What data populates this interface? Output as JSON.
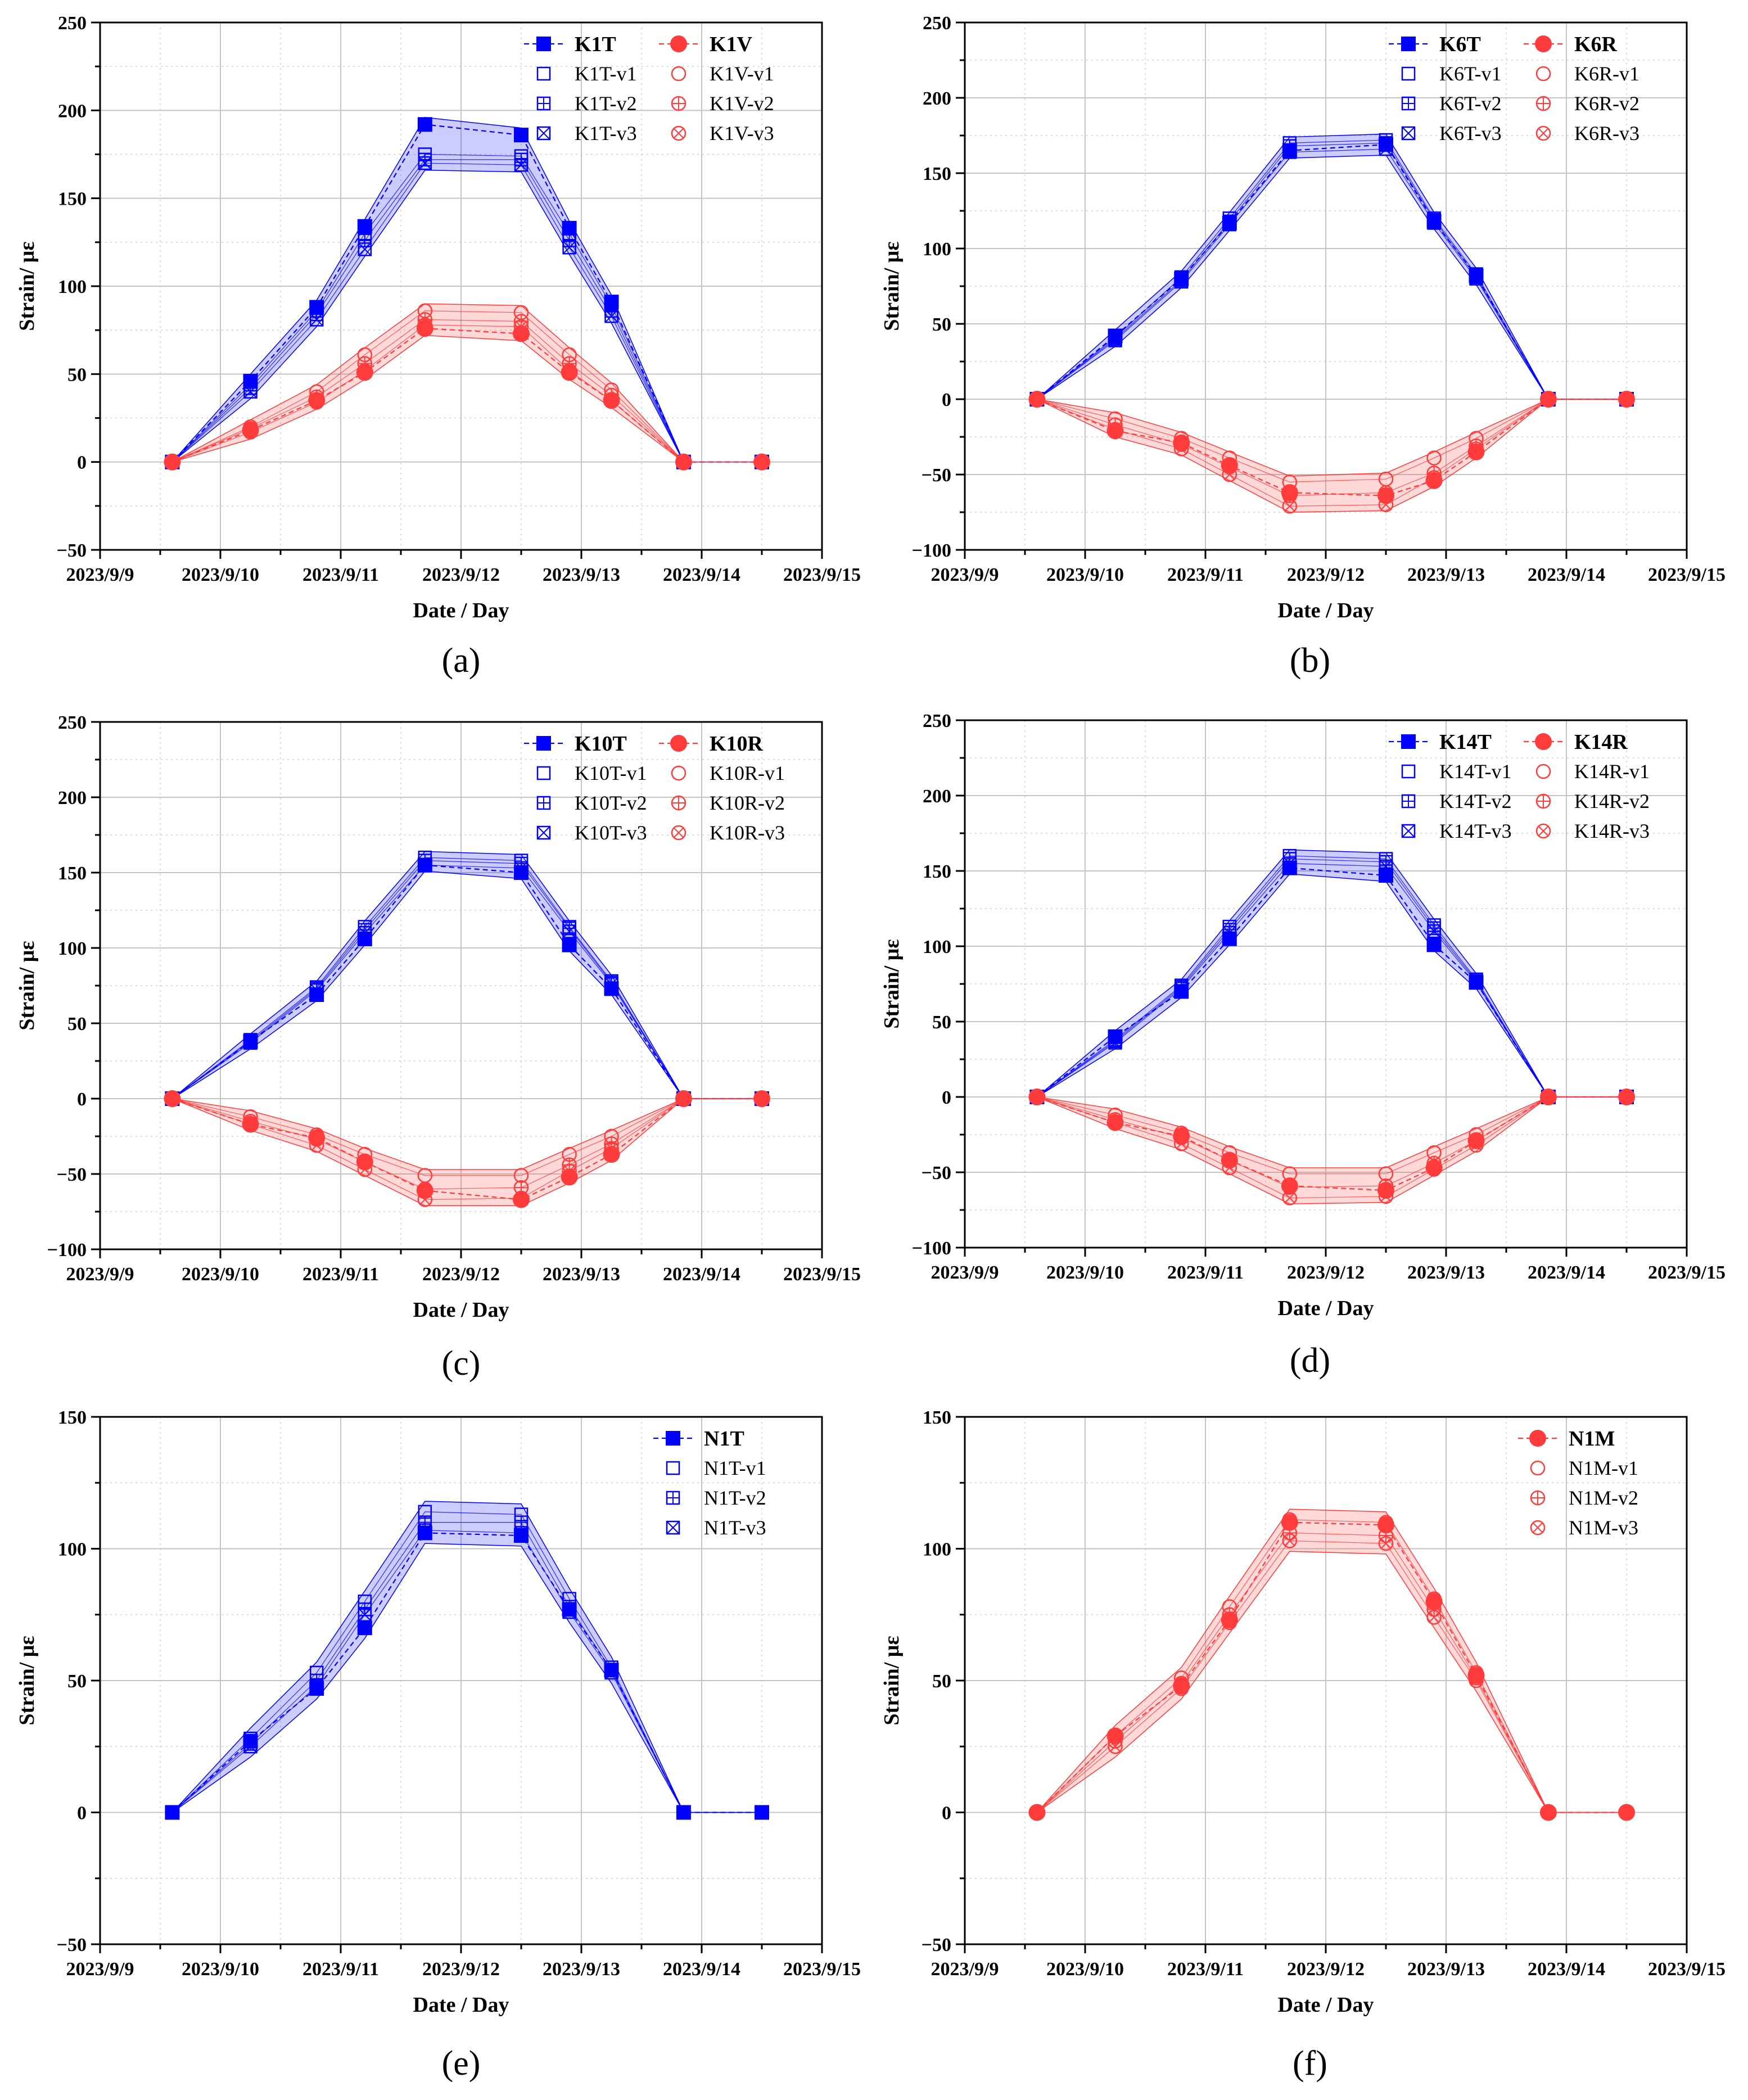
{
  "colors": {
    "T": "#0000ff",
    "V": "#ff3b3b"
  },
  "x_ticks": [
    "2023/9/9",
    "2023/9/10",
    "2023/9/11",
    "2023/9/12",
    "2023/9/13",
    "2023/9/14",
    "2023/9/15"
  ],
  "xlabel": "Date / Day",
  "ylabel": "Strain/ με",
  "chart_data": [
    {
      "type": "line",
      "label": "(a)",
      "ylim": [
        -50,
        250
      ],
      "yticks": [
        "−50",
        "0",
        "50",
        "100",
        "150",
        "200",
        "250"
      ],
      "x": [
        9.6,
        10.25,
        10.8,
        11.2,
        11.7,
        12.5,
        12.9,
        13.25,
        13.85,
        14.5
      ],
      "series": [
        {
          "name": "K1T",
          "color": "#0000ff",
          "marker": "square",
          "mean": [
            0,
            46,
            88,
            134,
            192,
            186,
            133,
            91,
            0,
            0
          ],
          "v1": [
            0,
            44,
            86,
            130,
            175,
            174,
            130,
            89,
            0,
            0
          ],
          "v2": [
            0,
            42,
            84,
            126,
            172,
            172,
            126,
            86,
            0,
            0
          ],
          "v3": [
            0,
            40,
            81,
            121,
            170,
            169,
            122,
            83,
            0,
            0
          ]
        },
        {
          "name": "K1V",
          "color": "#ff3b3b",
          "marker": "circle",
          "mean": [
            0,
            18,
            35,
            51,
            76,
            73,
            51,
            35,
            0,
            0
          ],
          "v1": [
            0,
            20,
            40,
            61,
            86,
            85,
            61,
            41,
            0,
            0
          ],
          "v2": [
            0,
            19,
            37,
            56,
            81,
            80,
            56,
            38,
            0,
            0
          ],
          "v3": [
            0,
            17,
            34,
            52,
            78,
            77,
            52,
            35,
            0,
            0
          ]
        }
      ]
    },
    {
      "type": "line",
      "label": "(b)",
      "ylim": [
        -100,
        250
      ],
      "yticks": [
        "−100",
        "−50",
        "0",
        "50",
        "100",
        "150",
        "200",
        "250"
      ],
      "x": [
        9.6,
        10.25,
        10.8,
        11.2,
        11.7,
        12.5,
        12.9,
        13.25,
        13.85,
        14.5
      ],
      "series": [
        {
          "name": "K6T",
          "color": "#0000ff",
          "marker": "square",
          "mean": [
            0,
            42,
            80,
            117,
            165,
            169,
            118,
            82,
            0,
            0
          ],
          "v1": [
            0,
            41,
            81,
            120,
            170,
            172,
            120,
            83,
            0,
            0
          ],
          "v2": [
            0,
            40,
            79,
            118,
            168,
            170,
            119,
            81,
            0,
            0
          ],
          "v3": [
            0,
            39,
            78,
            116,
            164,
            166,
            117,
            80,
            0,
            0
          ]
        },
        {
          "name": "K6R",
          "color": "#ff3b3b",
          "marker": "circle",
          "mean": [
            0,
            -21,
            -29,
            -44,
            -62,
            -64,
            -54,
            -35,
            0,
            0
          ],
          "v1": [
            0,
            -13,
            -26,
            -39,
            -55,
            -53,
            -39,
            -26,
            0,
            0
          ],
          "v2": [
            0,
            -17,
            -30,
            -45,
            -64,
            -62,
            -49,
            -31,
            0,
            0
          ],
          "v3": [
            0,
            -20,
            -33,
            -50,
            -71,
            -70,
            -52,
            -33,
            0,
            0
          ]
        }
      ]
    },
    {
      "type": "line",
      "label": "(c)",
      "ylim": [
        -100,
        250
      ],
      "yticks": [
        "−100",
        "−50",
        "0",
        "50",
        "100",
        "150",
        "200",
        "250"
      ],
      "x": [
        9.6,
        10.25,
        10.8,
        11.2,
        11.7,
        12.5,
        12.9,
        13.25,
        13.85,
        14.5
      ],
      "series": [
        {
          "name": "K10T",
          "color": "#0000ff",
          "marker": "square",
          "mean": [
            0,
            38,
            69,
            106,
            155,
            150,
            102,
            73,
            0,
            0
          ],
          "v1": [
            0,
            39,
            74,
            114,
            160,
            158,
            114,
            78,
            0,
            0
          ],
          "v2": [
            0,
            38,
            73,
            112,
            158,
            156,
            113,
            77,
            0,
            0
          ],
          "v3": [
            0,
            37,
            72,
            110,
            155,
            153,
            111,
            76,
            0,
            0
          ]
        },
        {
          "name": "K10R",
          "color": "#ff3b3b",
          "marker": "circle",
          "mean": [
            0,
            -17,
            -26,
            -42,
            -61,
            -67,
            -52,
            -37,
            0,
            0
          ],
          "v1": [
            0,
            -12,
            -24,
            -37,
            -51,
            -51,
            -37,
            -25,
            0,
            0
          ],
          "v2": [
            0,
            -15,
            -27,
            -42,
            -60,
            -59,
            -44,
            -30,
            0,
            0
          ],
          "v3": [
            0,
            -17,
            -31,
            -47,
            -67,
            -66,
            -48,
            -33,
            0,
            0
          ]
        }
      ]
    },
    {
      "type": "line",
      "label": "(d)",
      "ylim": [
        -100,
        250
      ],
      "yticks": [
        "−100",
        "−50",
        "0",
        "50",
        "100",
        "150",
        "200",
        "250"
      ],
      "x": [
        9.6,
        10.25,
        10.8,
        11.2,
        11.7,
        12.5,
        12.9,
        13.25,
        13.85,
        14.5
      ],
      "series": [
        {
          "name": "K14T",
          "color": "#0000ff",
          "marker": "square",
          "mean": [
            0,
            40,
            70,
            105,
            152,
            147,
            101,
            76,
            0,
            0
          ],
          "v1": [
            0,
            38,
            74,
            113,
            160,
            158,
            114,
            78,
            0,
            0
          ],
          "v2": [
            0,
            37,
            73,
            111,
            158,
            156,
            112,
            77,
            0,
            0
          ],
          "v3": [
            0,
            36,
            72,
            109,
            155,
            153,
            110,
            76,
            0,
            0
          ]
        },
        {
          "name": "K14R",
          "color": "#ff3b3b",
          "marker": "circle",
          "mean": [
            0,
            -17,
            -26,
            -42,
            -59,
            -62,
            -47,
            -29,
            0,
            0
          ],
          "v1": [
            0,
            -12,
            -24,
            -37,
            -51,
            -51,
            -37,
            -25,
            0,
            0
          ],
          "v2": [
            0,
            -15,
            -27,
            -42,
            -60,
            -59,
            -44,
            -29,
            0,
            0
          ],
          "v3": [
            0,
            -17,
            -31,
            -47,
            -67,
            -66,
            -48,
            -32,
            0,
            0
          ]
        }
      ]
    },
    {
      "type": "line",
      "label": "(e)",
      "ylim": [
        -50,
        150
      ],
      "yticks": [
        "−50",
        "0",
        "50",
        "100",
        "150"
      ],
      "x": [
        9.6,
        10.25,
        10.8,
        11.2,
        11.7,
        12.5,
        12.9,
        13.25,
        13.85,
        14.5
      ],
      "series": [
        {
          "name": "N1T",
          "color": "#0000ff",
          "marker": "square",
          "mean": [
            0,
            27,
            47,
            70,
            106,
            105,
            77,
            54,
            0,
            0
          ],
          "v1": [
            0,
            28,
            53,
            80,
            114,
            113,
            81,
            55,
            0,
            0
          ],
          "v2": [
            0,
            26,
            50,
            77,
            110,
            110,
            78,
            54,
            0,
            0
          ],
          "v3": [
            0,
            25,
            48,
            75,
            107,
            106,
            76,
            53,
            0,
            0
          ]
        }
      ]
    },
    {
      "type": "line",
      "label": "(f)",
      "ylim": [
        -50,
        150
      ],
      "yticks": [
        "−50",
        "0",
        "50",
        "100",
        "150"
      ],
      "x": [
        9.6,
        10.25,
        10.8,
        11.2,
        11.7,
        12.5,
        12.9,
        13.25,
        13.85,
        14.5
      ],
      "series": [
        {
          "name": "N1M",
          "color": "#ff3b3b",
          "marker": "circle",
          "mean": [
            0,
            29,
            48,
            73,
            110,
            109,
            80,
            52,
            0,
            0
          ],
          "v1": [
            0,
            29,
            51,
            78,
            111,
            110,
            81,
            53,
            0,
            0
          ],
          "v2": [
            0,
            27,
            49,
            75,
            106,
            105,
            77,
            51,
            0,
            0
          ],
          "v3": [
            0,
            25,
            47,
            72,
            103,
            102,
            74,
            50,
            0,
            0
          ]
        }
      ]
    }
  ]
}
